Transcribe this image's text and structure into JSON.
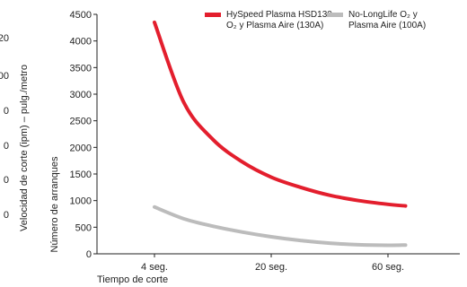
{
  "chart_data": {
    "type": "line",
    "categories": [
      "4 seg.",
      "20 seg.",
      "60 seg."
    ],
    "ylabel": "Número de arranques",
    "xlabel": "Tiempo de corte",
    "ylim": [
      0,
      4500
    ],
    "yticks": [
      0,
      500,
      1000,
      1500,
      2000,
      2500,
      3000,
      3500,
      4000,
      4500
    ],
    "secondary_ylabel": "Velocidad de corte (ipm) – pulg./metro",
    "secondary_ticks_visible": [
      "20",
      "00",
      "0",
      "0",
      "0",
      "0"
    ],
    "legend_position": "top-right",
    "series": [
      {
        "name_line1": "HySpeed Plasma HSD130",
        "name_line2": "O₂ y Plasma Aire (130A)",
        "color": "#e31e2d",
        "x": [
          0,
          0.25,
          0.5,
          0.75,
          1,
          1.25,
          1.5,
          1.75,
          2,
          2.15
        ],
        "values": [
          4350,
          2850,
          2150,
          1730,
          1440,
          1250,
          1100,
          1000,
          930,
          900
        ]
      },
      {
        "name_line1": "No-LongLife O₂ y",
        "name_line2": "Plasma Aire (100A)",
        "color": "#bcbcbc",
        "x": [
          0,
          0.25,
          0.5,
          0.75,
          1,
          1.25,
          1.5,
          1.75,
          2,
          2.15
        ],
        "values": [
          880,
          660,
          520,
          410,
          320,
          250,
          200,
          170,
          160,
          165
        ]
      }
    ]
  }
}
